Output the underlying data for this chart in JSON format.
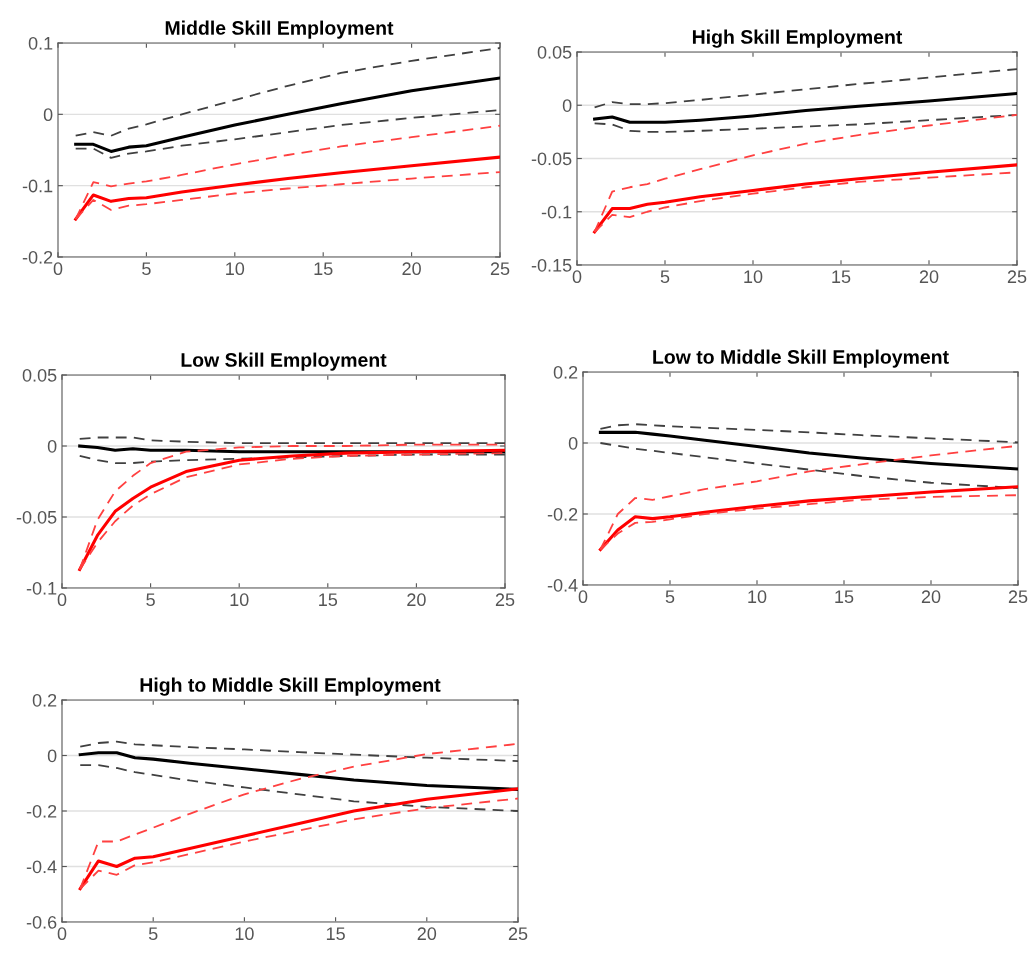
{
  "chart_data": [
    {
      "type": "line",
      "title": "Middle Skill Employment",
      "x": [
        1,
        2,
        3,
        4,
        5,
        7,
        10,
        13,
        16,
        20,
        25
      ],
      "xlim": [
        0,
        25
      ],
      "xticks": [
        0,
        5,
        10,
        15,
        20,
        25
      ],
      "ylim": [
        -0.2,
        0.1
      ],
      "yticks": [
        -0.2,
        -0.1,
        0,
        0.1
      ],
      "grid": "y",
      "marker": "none",
      "series": [
        {
          "color": "#000000",
          "line_style": "solid",
          "values": [
            -0.042,
            -0.042,
            -0.052,
            -0.046,
            -0.044,
            -0.032,
            -0.015,
            0.0,
            0.015,
            0.033,
            0.051
          ]
        },
        {
          "color": "#404040",
          "line_style": "dashed",
          "values": [
            -0.03,
            -0.025,
            -0.03,
            -0.02,
            -0.014,
            0.0,
            0.02,
            0.04,
            0.058,
            0.075,
            0.093
          ]
        },
        {
          "color": "#404040",
          "line_style": "dashed",
          "values": [
            -0.048,
            -0.048,
            -0.061,
            -0.055,
            -0.052,
            -0.044,
            -0.035,
            -0.025,
            -0.015,
            -0.005,
            0.006
          ]
        },
        {
          "color": "#ff0000",
          "line_style": "solid",
          "values": [
            -0.147,
            -0.113,
            -0.122,
            -0.118,
            -0.117,
            -0.109,
            -0.099,
            -0.09,
            -0.082,
            -0.072,
            -0.06
          ]
        },
        {
          "color": "#ff4040",
          "line_style": "dashed",
          "values": [
            -0.147,
            -0.095,
            -0.101,
            -0.097,
            -0.094,
            -0.085,
            -0.07,
            -0.057,
            -0.045,
            -0.032,
            -0.016
          ]
        },
        {
          "color": "#ff4040",
          "line_style": "dashed",
          "values": [
            -0.147,
            -0.12,
            -0.134,
            -0.128,
            -0.126,
            -0.12,
            -0.111,
            -0.104,
            -0.098,
            -0.09,
            -0.081
          ]
        }
      ]
    },
    {
      "type": "line",
      "title": "High Skill Employment",
      "x": [
        1,
        2,
        3,
        4,
        5,
        7,
        10,
        13,
        16,
        20,
        25
      ],
      "xlim": [
        0,
        25
      ],
      "xticks": [
        0,
        5,
        10,
        15,
        20,
        25
      ],
      "ylim": [
        -0.15,
        0.05
      ],
      "yticks": [
        -0.15,
        -0.1,
        -0.05,
        0,
        0.05
      ],
      "grid": "y",
      "marker": "none",
      "series": [
        {
          "color": "#000000",
          "line_style": "solid",
          "values": [
            -0.013,
            -0.011,
            -0.016,
            -0.016,
            -0.016,
            -0.014,
            -0.01,
            -0.005,
            -0.001,
            0.004,
            0.011
          ]
        },
        {
          "color": "#404040",
          "line_style": "dashed",
          "values": [
            -0.002,
            0.003,
            0.001,
            0.001,
            0.002,
            0.005,
            0.01,
            0.015,
            0.02,
            0.026,
            0.034
          ]
        },
        {
          "color": "#404040",
          "line_style": "dashed",
          "values": [
            -0.017,
            -0.018,
            -0.024,
            -0.025,
            -0.025,
            -0.024,
            -0.022,
            -0.02,
            -0.018,
            -0.014,
            -0.009
          ]
        },
        {
          "color": "#ff0000",
          "line_style": "solid",
          "values": [
            -0.119,
            -0.097,
            -0.097,
            -0.093,
            -0.091,
            -0.086,
            -0.08,
            -0.074,
            -0.069,
            -0.063,
            -0.056
          ]
        },
        {
          "color": "#ff4040",
          "line_style": "dashed",
          "values": [
            -0.119,
            -0.081,
            -0.077,
            -0.074,
            -0.069,
            -0.06,
            -0.047,
            -0.036,
            -0.028,
            -0.019,
            -0.009
          ]
        },
        {
          "color": "#ff4040",
          "line_style": "dashed",
          "values": [
            -0.119,
            -0.103,
            -0.105,
            -0.1,
            -0.096,
            -0.09,
            -0.083,
            -0.077,
            -0.072,
            -0.068,
            -0.063
          ]
        }
      ]
    },
    {
      "type": "line",
      "title": "Low Skill Employment",
      "x": [
        1,
        2,
        3,
        4,
        5,
        7,
        10,
        13,
        16,
        20,
        25
      ],
      "xlim": [
        0,
        25
      ],
      "xticks": [
        0,
        5,
        10,
        15,
        20,
        25
      ],
      "ylim": [
        -0.1,
        0.05
      ],
      "yticks": [
        -0.1,
        -0.05,
        0,
        0.05
      ],
      "grid": "y",
      "marker": "none",
      "series": [
        {
          "color": "#000000",
          "line_style": "solid",
          "values": [
            0.0,
            -0.001,
            -0.003,
            -0.002,
            -0.003,
            -0.003,
            -0.004,
            -0.004,
            -0.004,
            -0.004,
            -0.004
          ]
        },
        {
          "color": "#404040",
          "line_style": "dashed",
          "values": [
            0.005,
            0.006,
            0.006,
            0.006,
            0.004,
            0.003,
            0.002,
            0.002,
            0.002,
            0.002,
            0.002
          ]
        },
        {
          "color": "#404040",
          "line_style": "dashed",
          "values": [
            -0.007,
            -0.01,
            -0.012,
            -0.012,
            -0.011,
            -0.01,
            -0.009,
            -0.008,
            -0.007,
            -0.006,
            -0.006
          ]
        },
        {
          "color": "#ff0000",
          "line_style": "solid",
          "values": [
            -0.087,
            -0.063,
            -0.046,
            -0.037,
            -0.029,
            -0.018,
            -0.01,
            -0.007,
            -0.005,
            -0.004,
            -0.003
          ]
        },
        {
          "color": "#ff4040",
          "line_style": "dashed",
          "values": [
            -0.087,
            -0.052,
            -0.032,
            -0.021,
            -0.012,
            -0.004,
            -0.001,
            0.0,
            0.0,
            0.001,
            0.001
          ]
        },
        {
          "color": "#ff4040",
          "line_style": "dashed",
          "values": [
            -0.087,
            -0.068,
            -0.053,
            -0.042,
            -0.034,
            -0.022,
            -0.013,
            -0.009,
            -0.007,
            -0.006,
            -0.005
          ]
        }
      ]
    },
    {
      "type": "line",
      "title": "Low to Middle Skill Employment",
      "x": [
        1,
        2,
        3,
        4,
        5,
        7,
        10,
        13,
        16,
        20,
        25
      ],
      "xlim": [
        0,
        25
      ],
      "xticks": [
        0,
        5,
        10,
        15,
        20,
        25
      ],
      "ylim": [
        -0.4,
        0.2
      ],
      "yticks": [
        -0.4,
        -0.2,
        0,
        0.2
      ],
      "grid": "y",
      "marker": "none",
      "series": [
        {
          "color": "#000000",
          "line_style": "solid",
          "values": [
            0.03,
            0.03,
            0.03,
            0.025,
            0.02,
            0.008,
            -0.01,
            -0.028,
            -0.042,
            -0.058,
            -0.073
          ]
        },
        {
          "color": "#404040",
          "line_style": "dashed",
          "values": [
            0.04,
            0.05,
            0.053,
            0.05,
            0.047,
            0.043,
            0.037,
            0.03,
            0.022,
            0.013,
            0.002
          ]
        },
        {
          "color": "#404040",
          "line_style": "dashed",
          "values": [
            0.0,
            -0.008,
            -0.016,
            -0.022,
            -0.028,
            -0.04,
            -0.058,
            -0.075,
            -0.093,
            -0.112,
            -0.127
          ]
        },
        {
          "color": "#ff0000",
          "line_style": "solid",
          "values": [
            -0.3,
            -0.245,
            -0.208,
            -0.213,
            -0.208,
            -0.195,
            -0.178,
            -0.163,
            -0.152,
            -0.138,
            -0.123
          ]
        },
        {
          "color": "#ff4040",
          "line_style": "dashed",
          "values": [
            -0.3,
            -0.2,
            -0.155,
            -0.16,
            -0.15,
            -0.13,
            -0.108,
            -0.08,
            -0.06,
            -0.035,
            -0.008
          ]
        },
        {
          "color": "#ff4040",
          "line_style": "dashed",
          "values": [
            -0.3,
            -0.255,
            -0.225,
            -0.222,
            -0.215,
            -0.2,
            -0.185,
            -0.172,
            -0.16,
            -0.152,
            -0.147
          ]
        }
      ]
    },
    {
      "type": "line",
      "title": "High to Middle Skill Employment",
      "x": [
        1,
        2,
        3,
        4,
        5,
        7,
        10,
        13,
        16,
        20,
        25
      ],
      "xlim": [
        0,
        25
      ],
      "xticks": [
        0,
        5,
        10,
        15,
        20,
        25
      ],
      "ylim": [
        -0.6,
        0.2
      ],
      "yticks": [
        -0.6,
        -0.4,
        -0.2,
        0,
        0.2
      ],
      "grid": "y",
      "marker": "none",
      "series": [
        {
          "color": "#000000",
          "line_style": "solid",
          "values": [
            0.003,
            0.01,
            0.01,
            -0.008,
            -0.013,
            -0.028,
            -0.048,
            -0.068,
            -0.088,
            -0.108,
            -0.122
          ]
        },
        {
          "color": "#404040",
          "line_style": "dashed",
          "values": [
            0.032,
            0.045,
            0.05,
            0.04,
            0.037,
            0.03,
            0.022,
            0.012,
            0.003,
            -0.008,
            -0.02
          ]
        },
        {
          "color": "#404040",
          "line_style": "dashed",
          "values": [
            -0.035,
            -0.035,
            -0.045,
            -0.06,
            -0.07,
            -0.09,
            -0.115,
            -0.14,
            -0.165,
            -0.185,
            -0.2
          ]
        },
        {
          "color": "#ff0000",
          "line_style": "solid",
          "values": [
            -0.48,
            -0.38,
            -0.4,
            -0.37,
            -0.365,
            -0.335,
            -0.29,
            -0.245,
            -0.2,
            -0.158,
            -0.12
          ]
        },
        {
          "color": "#ff4040",
          "line_style": "dashed",
          "values": [
            -0.48,
            -0.31,
            -0.31,
            -0.285,
            -0.26,
            -0.21,
            -0.14,
            -0.085,
            -0.04,
            0.005,
            0.042
          ]
        },
        {
          "color": "#ff4040",
          "line_style": "dashed",
          "values": [
            -0.48,
            -0.415,
            -0.43,
            -0.395,
            -0.385,
            -0.355,
            -0.31,
            -0.27,
            -0.23,
            -0.19,
            -0.155
          ]
        }
      ]
    }
  ]
}
